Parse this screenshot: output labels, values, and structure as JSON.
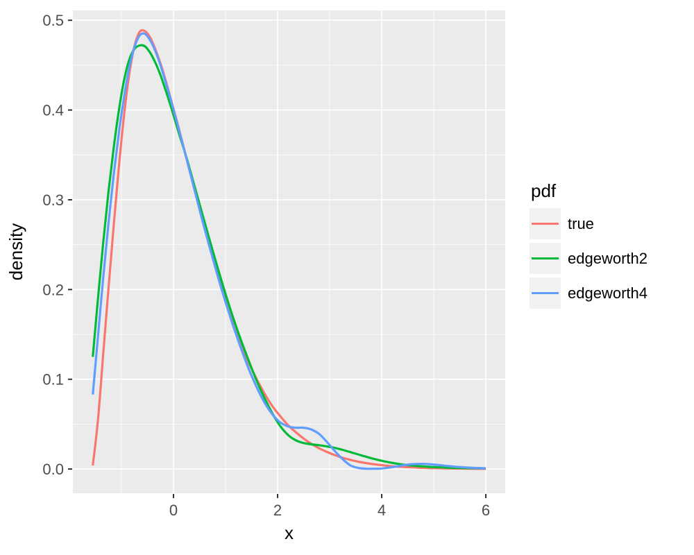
{
  "chart_data": {
    "type": "line",
    "title": "",
    "xlabel": "x",
    "ylabel": "density",
    "xlim": [
      -1.933,
      6.373
    ],
    "ylim": [
      -0.027,
      0.511
    ],
    "grid": true,
    "panel_background": "#EBEBEB",
    "grid_color": "#FFFFFF",
    "tick_color": "#333333",
    "tick_label_color": "#4D4D4D",
    "axis_title_color": "#000000",
    "x_ticks": {
      "values": [
        0,
        2,
        4,
        6
      ],
      "labels": [
        "0",
        "2",
        "4",
        "6"
      ],
      "minor": [
        -1,
        1,
        3,
        5
      ]
    },
    "y_ticks": {
      "values": [
        0.0,
        0.1,
        0.2,
        0.3,
        0.4,
        0.5
      ],
      "labels": [
        "0.0",
        "0.1",
        "0.2",
        "0.3",
        "0.4",
        "0.5"
      ],
      "minor": [
        0.05,
        0.15,
        0.25,
        0.35,
        0.45
      ]
    },
    "legend": {
      "title": "pdf",
      "position": "right",
      "key_fill": "#F2F2F2"
    },
    "x": [
      -1.55,
      -1.45,
      -1.35,
      -1.25,
      -1.15,
      -1.05,
      -0.95,
      -0.85,
      -0.75,
      -0.65,
      -0.55,
      -0.45,
      -0.35,
      -0.25,
      -0.15,
      -0.05,
      0.1,
      0.25,
      0.4,
      0.55,
      0.7,
      0.85,
      1.0,
      1.15,
      1.3,
      1.45,
      1.6,
      1.75,
      1.9,
      2.05,
      2.2,
      2.35,
      2.5,
      2.65,
      2.8,
      2.95,
      3.1,
      3.25,
      3.4,
      3.55,
      3.7,
      3.85,
      4.0,
      4.15,
      4.3,
      4.45,
      4.6,
      4.75,
      4.9,
      5.05,
      5.2,
      5.35,
      5.5,
      5.75,
      6.0
    ],
    "series": [
      {
        "name": "true",
        "color": "#F8766D",
        "values": [
          0.004,
          0.055,
          0.128,
          0.2,
          0.27,
          0.336,
          0.394,
          0.44,
          0.471,
          0.487,
          0.488,
          0.481,
          0.468,
          0.452,
          0.433,
          0.412,
          0.38,
          0.346,
          0.312,
          0.279,
          0.247,
          0.217,
          0.189,
          0.163,
          0.139,
          0.118,
          0.1,
          0.084,
          0.07,
          0.059,
          0.049,
          0.041,
          0.034,
          0.028,
          0.023,
          0.019,
          0.0155,
          0.0125,
          0.0102,
          0.0082,
          0.0066,
          0.0053,
          0.0043,
          0.0034,
          0.0027,
          0.0022,
          0.0018,
          0.0014,
          0.0011,
          0.0009,
          0.0007,
          0.0006,
          0.0005,
          0.0003,
          0.0002
        ]
      },
      {
        "name": "edgeworth2",
        "color": "#00BA38",
        "values": [
          0.125,
          0.19,
          0.252,
          0.308,
          0.357,
          0.399,
          0.433,
          0.456,
          0.468,
          0.472,
          0.471,
          0.464,
          0.453,
          0.439,
          0.422,
          0.404,
          0.375,
          0.347,
          0.316,
          0.285,
          0.254,
          0.224,
          0.195,
          0.168,
          0.143,
          0.12,
          0.098,
          0.079,
          0.062,
          0.048,
          0.038,
          0.032,
          0.029,
          0.0275,
          0.0265,
          0.0252,
          0.0235,
          0.0213,
          0.0188,
          0.0162,
          0.0137,
          0.0113,
          0.0092,
          0.0074,
          0.0059,
          0.0047,
          0.0038,
          0.0031,
          0.0025,
          0.0021,
          0.0017,
          0.0014,
          0.0012,
          0.0009,
          0.0007
        ]
      },
      {
        "name": "edgeworth4",
        "color": "#619CFF",
        "values": [
          0.083,
          0.148,
          0.213,
          0.273,
          0.327,
          0.374,
          0.414,
          0.447,
          0.47,
          0.483,
          0.485,
          0.478,
          0.466,
          0.45,
          0.431,
          0.411,
          0.379,
          0.346,
          0.312,
          0.278,
          0.246,
          0.215,
          0.186,
          0.159,
          0.134,
          0.111,
          0.091,
          0.074,
          0.061,
          0.052,
          0.0475,
          0.046,
          0.046,
          0.044,
          0.039,
          0.03,
          0.02,
          0.011,
          0.004,
          0.0012,
          0.0004,
          0.0003,
          0.0006,
          0.0016,
          0.003,
          0.0045,
          0.0055,
          0.0058,
          0.0055,
          0.0047,
          0.0038,
          0.0029,
          0.0022,
          0.0013,
          0.0008
        ]
      }
    ]
  }
}
